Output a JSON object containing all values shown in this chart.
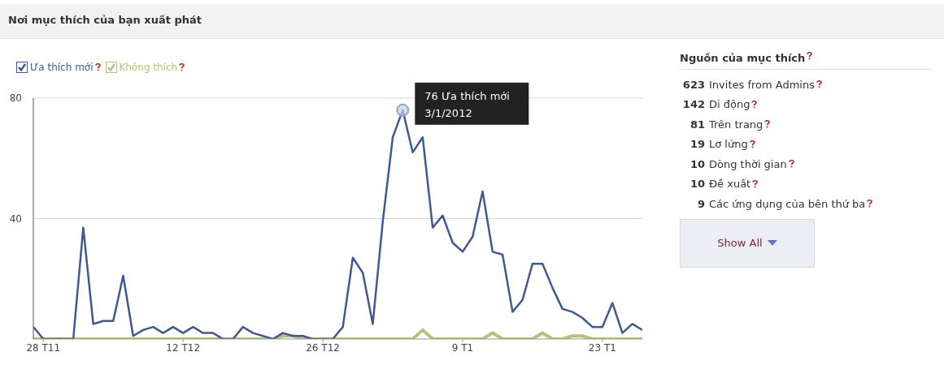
{
  "chart_data": [
    {
      "type": "line",
      "title": "Nơi mục thích của bạn xuất phát",
      "x": [
        "2011-11-27",
        "2011-11-28",
        "2011-11-29",
        "2011-11-30",
        "2011-12-01",
        "2011-12-02",
        "2011-12-03",
        "2011-12-04",
        "2011-12-05",
        "2011-12-06",
        "2011-12-07",
        "2011-12-08",
        "2011-12-09",
        "2011-12-10",
        "2011-12-11",
        "2011-12-12",
        "2011-12-13",
        "2011-12-14",
        "2011-12-15",
        "2011-12-16",
        "2011-12-17",
        "2011-12-18",
        "2011-12-19",
        "2011-12-20",
        "2011-12-21",
        "2011-12-22",
        "2011-12-23",
        "2011-12-24",
        "2011-12-25",
        "2011-12-26",
        "2011-12-27",
        "2011-12-28",
        "2011-12-29",
        "2011-12-30",
        "2011-12-31",
        "2012-01-01",
        "2012-01-02",
        "2012-01-03",
        "2012-01-04",
        "2012-01-05",
        "2012-01-06",
        "2012-01-07",
        "2012-01-08",
        "2012-01-09",
        "2012-01-10",
        "2012-01-11",
        "2012-01-12",
        "2012-01-13",
        "2012-01-14",
        "2012-01-15",
        "2012-01-16",
        "2012-01-17",
        "2012-01-18",
        "2012-01-19",
        "2012-01-20",
        "2012-01-21",
        "2012-01-22",
        "2012-01-23",
        "2012-01-24",
        "2012-01-25",
        "2012-01-26",
        "2012-01-27"
      ],
      "series": [
        {
          "name": "Ưa thích mới",
          "color": "#3f5a93",
          "values": [
            4,
            0,
            0,
            0,
            0,
            37,
            5,
            6,
            6,
            21,
            1,
            3,
            4,
            2,
            4,
            2,
            4,
            2,
            2,
            0,
            0,
            4,
            2,
            1,
            0,
            2,
            1,
            1,
            0,
            0,
            0,
            4,
            27,
            22,
            5,
            39,
            67,
            76,
            62,
            67,
            37,
            41,
            32,
            29,
            34,
            49,
            29,
            28,
            9,
            13,
            25,
            25,
            17,
            10,
            9,
            7,
            4,
            4,
            12,
            2,
            5,
            3
          ]
        },
        {
          "name": "Không thích",
          "color": "#b3c47a",
          "values": [
            0,
            0,
            0,
            0,
            0,
            0,
            0,
            0,
            0,
            0,
            0,
            0,
            0,
            0,
            0,
            0,
            0,
            0,
            0,
            0,
            0,
            0,
            0,
            0,
            0,
            1,
            1,
            0,
            0,
            0,
            0,
            0,
            0,
            0,
            0,
            0,
            0,
            0,
            0,
            3,
            0,
            0,
            0,
            0,
            0,
            0,
            2,
            0,
            0,
            0,
            0,
            2,
            0,
            0,
            1,
            1,
            0,
            0,
            0,
            0,
            0,
            0
          ]
        }
      ],
      "xlim": [
        "2011-11-27",
        "2012-01-27"
      ],
      "xticks": [
        {
          "value": "2011-11-28",
          "label": "28 T11"
        },
        {
          "value": "2011-12-12",
          "label": "12 T12"
        },
        {
          "value": "2011-12-26",
          "label": "26 T12"
        },
        {
          "value": "2012-01-09",
          "label": "9 T1"
        },
        {
          "value": "2012-01-23",
          "label": "23 T1"
        }
      ],
      "ylim": [
        0,
        80
      ],
      "yticks": [
        40,
        80
      ],
      "grid": "y",
      "legend": "top left",
      "annotations": [
        {
          "text": "76 Ưa thích mới\n3/1/2012",
          "x": "2012-01-03",
          "y": 76
        }
      ]
    },
    {
      "type": "other",
      "title": "Nguồn của mục thích",
      "categories": [
        "Invites from Admins",
        "Di động",
        "Trên trang",
        "Lơ lửng",
        "Dòng thời gian",
        "Đề xuất",
        "Các ứng dụng của bên thứ ba"
      ],
      "values": [
        623,
        142,
        81,
        19,
        10,
        10,
        9
      ],
      "data_labels": true,
      "annotations": [
        "Show All"
      ]
    }
  ]
}
